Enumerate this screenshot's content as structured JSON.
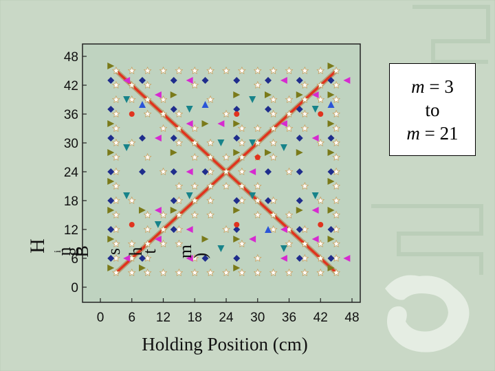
{
  "legend": {
    "line1_var": "m",
    "line1_rest": " = 3",
    "line2": "to",
    "line3_var": "m",
    "line3_rest": " = 21"
  },
  "colors": {
    "background": "#c9d8c6",
    "plot_background": "#bfd3c0",
    "cross_line": "#e0331e",
    "cross_border": "#b5a07a",
    "diamond": "#1f2d8c",
    "triangle_right": "#7a7a1a",
    "triangle_left": "#d62ad0",
    "triangle_down": "#17838a",
    "triangle_up": "#2a55d8",
    "circle": "#e0331e",
    "star": "#ffffff"
  },
  "chart_data": {
    "type": "scatter",
    "title": "",
    "xlabel": "Holding Position (cm)",
    "ylabel_fragments": [
      "H",
      "i",
      "n",
      "g",
      "B",
      "s",
      "h",
      "t",
      "m",
      ")"
    ],
    "xlim": [
      -3,
      51
    ],
    "ylim": [
      -3,
      51
    ],
    "x_ticks": [
      0,
      6,
      12,
      18,
      24,
      30,
      36,
      42,
      48
    ],
    "y_ticks": [
      0,
      6,
      12,
      18,
      24,
      30,
      36,
      42,
      48
    ],
    "grid": false,
    "cross_lines": [
      {
        "x": [
          3,
          45
        ],
        "y": [
          3,
          45
        ]
      },
      {
        "x": [
          3,
          45
        ],
        "y": [
          45,
          3
        ]
      }
    ],
    "series": [
      {
        "marker": "diamond",
        "points": [
          [
            2,
            43
          ],
          [
            8,
            43
          ],
          [
            14,
            43
          ],
          [
            20,
            43
          ],
          [
            26,
            43
          ],
          [
            32,
            43
          ],
          [
            38,
            43
          ],
          [
            44,
            43
          ],
          [
            2,
            37
          ],
          [
            14,
            37
          ],
          [
            26,
            37
          ],
          [
            38,
            37
          ],
          [
            2,
            31
          ],
          [
            14,
            31
          ],
          [
            26,
            31
          ],
          [
            38,
            31
          ],
          [
            44,
            31
          ],
          [
            2,
            24
          ],
          [
            8,
            24
          ],
          [
            14,
            24
          ],
          [
            20,
            24
          ],
          [
            32,
            24
          ],
          [
            38,
            24
          ],
          [
            44,
            24
          ],
          [
            2,
            18
          ],
          [
            14,
            18
          ],
          [
            26,
            18
          ],
          [
            38,
            18
          ],
          [
            2,
            12
          ],
          [
            14,
            12
          ],
          [
            26,
            12
          ],
          [
            38,
            12
          ],
          [
            44,
            12
          ],
          [
            2,
            6
          ],
          [
            8,
            6
          ],
          [
            20,
            6
          ],
          [
            26,
            6
          ],
          [
            38,
            6
          ],
          [
            44,
            6
          ],
          [
            32,
            37
          ],
          [
            8,
            31
          ],
          [
            32,
            18
          ]
        ]
      },
      {
        "marker": "triangle-right",
        "points": [
          [
            2,
            46
          ],
          [
            2,
            34
          ],
          [
            2,
            28
          ],
          [
            2,
            22
          ],
          [
            2,
            16
          ],
          [
            2,
            10
          ],
          [
            2,
            4
          ],
          [
            44,
            46
          ],
          [
            44,
            40
          ],
          [
            44,
            34
          ],
          [
            44,
            28
          ],
          [
            44,
            22
          ],
          [
            44,
            16
          ],
          [
            44,
            10
          ],
          [
            44,
            4
          ],
          [
            26,
            40
          ],
          [
            26,
            34
          ],
          [
            26,
            28
          ],
          [
            26,
            16
          ],
          [
            26,
            10
          ],
          [
            26,
            4
          ],
          [
            14,
            40
          ],
          [
            14,
            28
          ],
          [
            14,
            16
          ],
          [
            38,
            40
          ],
          [
            38,
            28
          ],
          [
            38,
            16
          ],
          [
            8,
            16
          ],
          [
            8,
            4
          ],
          [
            32,
            40
          ],
          [
            32,
            28
          ],
          [
            20,
            34
          ],
          [
            20,
            10
          ]
        ]
      },
      {
        "marker": "triangle-left",
        "points": [
          [
            5,
            43
          ],
          [
            11,
            40
          ],
          [
            17,
            43
          ],
          [
            35,
            43
          ],
          [
            41,
            40
          ],
          [
            47,
            43
          ],
          [
            11,
            31
          ],
          [
            17,
            34
          ],
          [
            35,
            34
          ],
          [
            41,
            31
          ],
          [
            17,
            24
          ],
          [
            29,
            24
          ],
          [
            11,
            16
          ],
          [
            17,
            12
          ],
          [
            35,
            12
          ],
          [
            41,
            16
          ],
          [
            5,
            6
          ],
          [
            11,
            10
          ],
          [
            17,
            6
          ],
          [
            35,
            6
          ],
          [
            41,
            10
          ],
          [
            47,
            6
          ],
          [
            23,
            34
          ],
          [
            29,
            10
          ]
        ]
      },
      {
        "marker": "triangle-down",
        "points": [
          [
            5,
            39
          ],
          [
            17,
            37
          ],
          [
            29,
            39
          ],
          [
            41,
            37
          ],
          [
            5,
            29
          ],
          [
            23,
            30
          ],
          [
            35,
            29
          ],
          [
            5,
            19
          ],
          [
            17,
            19
          ],
          [
            29,
            19
          ],
          [
            41,
            19
          ],
          [
            11,
            13
          ],
          [
            23,
            8
          ],
          [
            35,
            8
          ],
          [
            29,
            30
          ]
        ]
      },
      {
        "marker": "triangle-up",
        "points": [
          [
            8,
            38
          ],
          [
            20,
            38
          ],
          [
            32,
            12
          ],
          [
            44,
            38
          ]
        ]
      },
      {
        "marker": "circle",
        "points": [
          [
            6,
            36
          ],
          [
            26,
            36
          ],
          [
            42,
            36
          ],
          [
            6,
            13
          ],
          [
            26,
            13
          ],
          [
            42,
            13
          ],
          [
            30,
            27
          ]
        ]
      }
    ],
    "star_grid": {
      "xmin": 3,
      "xmax": 45,
      "ymin": 3,
      "ymax": 45,
      "step": 3
    }
  }
}
